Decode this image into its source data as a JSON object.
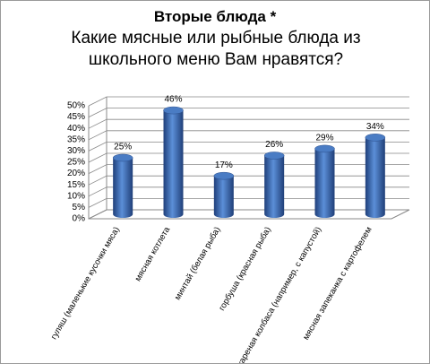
{
  "chart_data": {
    "type": "bar",
    "title": "Вторые блюда *",
    "subtitle": "Какие мясные или рыбные блюда из школьного меню Вам нравятся?",
    "categories": [
      "гуляш (маленькие кусочки мяса)",
      "мясная котлета",
      "минтай (белая рыба)",
      "горбуша (красная рыба)",
      "жареная колбаса (например, с капустой)",
      "мясная запеканка с картофелем"
    ],
    "values": [
      25,
      46,
      17,
      26,
      29,
      34
    ],
    "value_labels": [
      "25%",
      "46%",
      "17%",
      "26%",
      "29%",
      "34%"
    ],
    "color": "#4a7cc4",
    "ylim": [
      0,
      50
    ],
    "yticks": [
      {
        "value": 0,
        "label": "0%"
      },
      {
        "value": 5,
        "label": "5%"
      },
      {
        "value": 10,
        "label": "10%"
      },
      {
        "value": 15,
        "label": "15%"
      },
      {
        "value": 20,
        "label": "20%"
      },
      {
        "value": 25,
        "label": "25%"
      },
      {
        "value": 30,
        "label": "30%"
      },
      {
        "value": 35,
        "label": "35%"
      },
      {
        "value": 40,
        "label": "40%"
      },
      {
        "value": 45,
        "label": "45%"
      },
      {
        "value": 50,
        "label": "50%"
      }
    ],
    "grid": true
  }
}
